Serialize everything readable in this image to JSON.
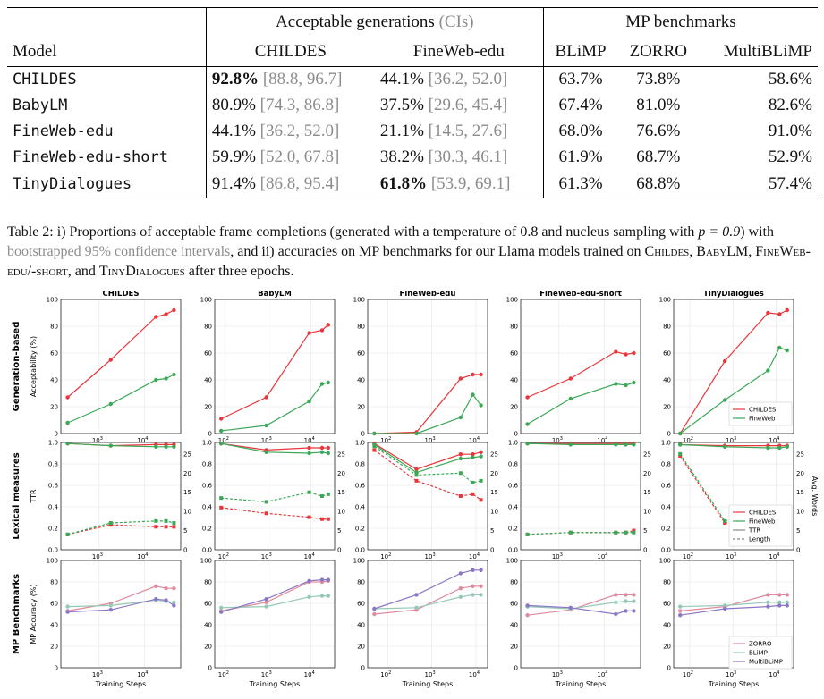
{
  "table": {
    "group_headers": [
      "Acceptable generations",
      "(CIs)",
      "MP benchmarks"
    ],
    "columns": [
      "Model",
      "CHILDES",
      "FineWeb-edu",
      "BLiMP",
      "ZORRO",
      "MultiBLiMP"
    ],
    "rows": [
      {
        "model": "CHILDES",
        "childes": "92.8%",
        "childes_ci": "[88.8, 96.7]",
        "fineweb": "44.1%",
        "fineweb_ci": "[36.2, 52.0]",
        "blimp": "63.7%",
        "zorro": "73.8%",
        "multiblimp": "58.6%"
      },
      {
        "model": "BabyLM",
        "childes": "80.9%",
        "childes_ci": "[74.3, 86.8]",
        "fineweb": "37.5%",
        "fineweb_ci": "[29.6, 45.4]",
        "blimp": "67.4%",
        "zorro": "81.0%",
        "multiblimp": "82.6%"
      },
      {
        "model": "FineWeb-edu",
        "childes": "44.1%",
        "childes_ci": "[36.2, 52.0]",
        "fineweb": "21.1%",
        "fineweb_ci": "[14.5, 27.6]",
        "blimp": "68.0%",
        "zorro": "76.6%",
        "multiblimp": "91.0%"
      },
      {
        "model": "FineWeb-edu-short",
        "childes": "59.9%",
        "childes_ci": "[52.0, 67.8]",
        "fineweb": "38.2%",
        "fineweb_ci": "[30.3, 46.1]",
        "blimp": "61.9%",
        "zorro": "68.7%",
        "multiblimp": "52.9%"
      },
      {
        "model": "TinyDialogues",
        "childes": "91.4%",
        "childes_ci": "[86.8, 95.4]",
        "fineweb": "61.8%",
        "fineweb_ci": "[53.9, 69.1]",
        "blimp": "61.3%",
        "zorro": "68.8%",
        "multiblimp": "57.4%"
      }
    ]
  },
  "caption": {
    "part1": "Table 2: i) Proportions of acceptable frame completions (generated with a temperature of 0.8 and nucleus sampling with ",
    "p_equation": "p = 0.9",
    "part2": ") with ",
    "ci_phrase": "bootstrapped 95% confidence intervals",
    "part3": ", and ii) accuracies on MP benchmarks for our Llama models trained on ",
    "m1": "Childes",
    "sep1": ", ",
    "m2": "BabyLM",
    "sep2": ", ",
    "m3": "FineWeb-edu/-short",
    "sep3": ", and ",
    "m4": "TinyDialogues",
    "part4": " after three epochs."
  },
  "figure": {
    "panel_titles": [
      "CHILDES",
      "BabyLM",
      "FineWeb-edu",
      "FineWeb-edu-short",
      "TinyDialogues"
    ],
    "row_labels": [
      "Generation-based",
      "Lexical measures",
      "MP Benchmarks"
    ],
    "y_labels": [
      "Acceptability (%)",
      "TTR",
      "MP Accuracy (%)"
    ],
    "y2_label": "Avg. Words",
    "x_label": "Training Steps",
    "colors": {
      "childes": "#e8363b",
      "fineweb": "#3aa856",
      "zorro": "#e08a9d",
      "blimp": "#95c9b6",
      "multiblimp": "#8a75c6"
    },
    "legends": {
      "gen": [
        "CHILDES",
        "FineWeb"
      ],
      "lex": [
        "CHILDES",
        "FineWeb",
        "TTR",
        "Length"
      ],
      "mp": [
        "ZORRO",
        "BLiMP",
        "MultiBLiMP"
      ]
    },
    "tick_labels": {
      "y100": [
        "0",
        "20",
        "40",
        "60",
        "80",
        "100"
      ],
      "y1": [
        "0.0",
        "0.2",
        "0.4",
        "0.6",
        "0.8",
        "1.0"
      ],
      "y25": [
        "0",
        "5",
        "10",
        "15",
        "20",
        "25"
      ],
      "x": [
        "10",
        "10",
        "10"
      ],
      "x_exp": [
        "2",
        "3",
        "4"
      ]
    }
  },
  "chart_data": {
    "type": "line",
    "x_scale": "log",
    "models": [
      {
        "name": "CHILDES",
        "x": [
          200,
          1800,
          18000,
          30000,
          45000
        ],
        "gen": {
          "CHILDES": [
            27,
            55,
            87,
            89,
            92
          ],
          "FineWeb": [
            8,
            22,
            40,
            41,
            44
          ]
        },
        "ttr": {
          "CHILDES": [
            0.99,
            0.97,
            0.98,
            0.98,
            0.98
          ],
          "FineWeb": [
            0.99,
            0.97,
            0.96,
            0.96,
            0.96
          ]
        },
        "length": {
          "CHILDES": [
            4,
            6.5,
            6,
            6,
            6
          ],
          "FineWeb": [
            4,
            7,
            7.5,
            7.5,
            7
          ]
        },
        "mp": {
          "ZORRO": [
            53,
            60,
            76,
            74,
            74
          ],
          "BLiMP": [
            57,
            58,
            63,
            62,
            61
          ],
          "MultiBLiMP": [
            52,
            54,
            64,
            63,
            58
          ]
        }
      },
      {
        "name": "BabyLM",
        "x": [
          80,
          900,
          9000,
          18000,
          25000
        ],
        "gen": {
          "CHILDES": [
            11,
            27,
            75,
            77,
            81
          ],
          "FineWeb": [
            2,
            6,
            24,
            37,
            38
          ]
        },
        "ttr": {
          "CHILDES": [
            0.99,
            0.93,
            0.95,
            0.95,
            0.95
          ],
          "FineWeb": [
            0.99,
            0.91,
            0.9,
            0.91,
            0.9
          ]
        },
        "length": {
          "CHILDES": [
            11,
            9.5,
            8.5,
            8,
            8
          ],
          "FineWeb": [
            13.5,
            12.5,
            15,
            14,
            14.5
          ]
        },
        "mp": {
          "ZORRO": [
            53,
            61,
            80,
            80,
            81
          ],
          "BLiMP": [
            56,
            57,
            66,
            67,
            67
          ],
          "MultiBLiMP": [
            52,
            64,
            81,
            82,
            82
          ]
        }
      },
      {
        "name": "FineWeb-edu",
        "x": [
          50,
          450,
          4500,
          8500,
          13000
        ],
        "gen": {
          "CHILDES": [
            0,
            1,
            41,
            44,
            44
          ],
          "FineWeb": [
            0,
            0,
            12,
            29,
            21
          ]
        },
        "ttr": {
          "CHILDES": [
            0.99,
            0.75,
            0.89,
            0.89,
            0.91
          ],
          "FineWeb": [
            0.98,
            0.72,
            0.85,
            0.86,
            0.87
          ]
        },
        "length": {
          "CHILDES": [
            26,
            18,
            14,
            14.5,
            13
          ],
          "FineWeb": [
            27,
            19.5,
            20,
            17.5,
            18
          ]
        },
        "mp": {
          "ZORRO": [
            50,
            54,
            74,
            76,
            76
          ],
          "BLiMP": [
            55,
            56,
            66,
            68,
            68
          ],
          "MultiBLiMP": [
            55,
            68,
            88,
            91,
            91
          ]
        }
      },
      {
        "name": "FineWeb-edu-short",
        "x": [
          200,
          1800,
          18000,
          30000,
          45000
        ],
        "gen": {
          "CHILDES": [
            27,
            41,
            61,
            59,
            60
          ],
          "FineWeb": [
            7,
            26,
            37,
            36,
            38
          ]
        },
        "ttr": {
          "CHILDES": [
            0.99,
            0.99,
            0.99,
            0.99,
            0.99
          ],
          "FineWeb": [
            0.99,
            0.98,
            0.98,
            0.98,
            0.98
          ]
        },
        "length": {
          "CHILDES": [
            4,
            4.5,
            4.5,
            4.5,
            5
          ],
          "FineWeb": [
            4,
            4.5,
            4.5,
            4.5,
            4.5
          ]
        },
        "mp": {
          "ZORRO": [
            49,
            54,
            68,
            68,
            68
          ],
          "BLiMP": [
            57,
            55,
            61,
            62,
            62
          ],
          "MultiBLiMP": [
            58,
            56,
            50,
            53,
            53
          ]
        }
      },
      {
        "name": "TinyDialogues",
        "x": [
          60,
          650,
          6500,
          12000,
          18000
        ],
        "gen": {
          "CHILDES": [
            0,
            54,
            90,
            89,
            92
          ],
          "FineWeb": [
            0,
            25,
            47,
            64,
            62
          ]
        },
        "ttr": {
          "CHILDES": [
            0.98,
            0.97,
            0.97,
            0.97,
            0.97
          ],
          "FineWeb": [
            0.98,
            0.96,
            0.95,
            0.95,
            0.96
          ]
        },
        "length": {
          "CHILDES": [
            24.5,
            7,
            7.5,
            7,
            7
          ],
          "FineWeb": [
            25,
            7.5,
            10.5,
            10,
            10.5
          ]
        },
        "mp": {
          "ZORRO": [
            53,
            57,
            68,
            68,
            68
          ],
          "BLiMP": [
            57,
            58,
            61,
            61,
            61
          ],
          "MultiBLiMP": [
            49,
            55,
            57,
            58,
            58
          ]
        }
      }
    ]
  }
}
